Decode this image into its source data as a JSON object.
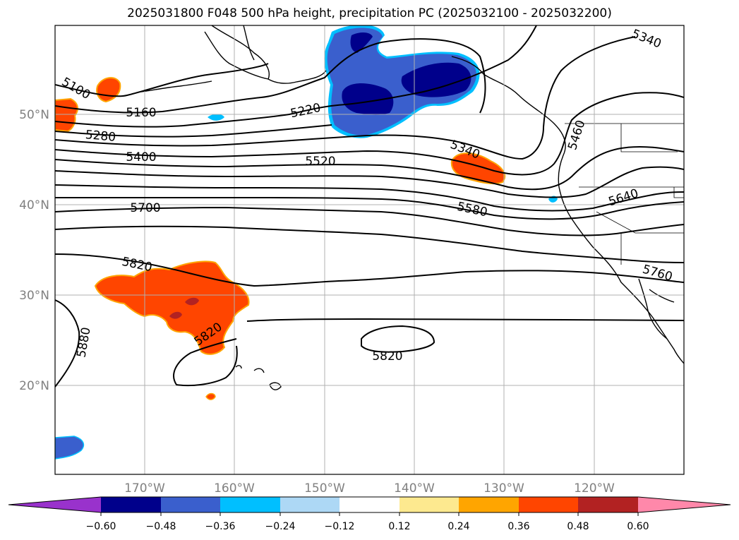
{
  "title": "2025031800 F048 500 hPa height, precipitation PC (2025032100 - 2025032200)",
  "latitude_labels": [
    "50°N",
    "40°N",
    "30°N",
    "20°N"
  ],
  "longitude_labels": [
    "170°W",
    "160°W",
    "150°W",
    "140°W",
    "130°W",
    "120°W"
  ],
  "contour_labels": [
    "5100",
    "5160",
    "5220",
    "5280",
    "5340",
    "5400",
    "5460",
    "5520",
    "5580",
    "5640",
    "5700",
    "5760",
    "5820",
    "5820",
    "5820",
    "5880",
    "5340"
  ],
  "colorbar": {
    "ticks": [
      "−0.60",
      "−0.48",
      "−0.36",
      "−0.24",
      "−0.12",
      "0.12",
      "0.24",
      "0.36",
      "0.48",
      "0.60"
    ],
    "colors": [
      "#9932cc",
      "#00008b",
      "#3a5fcd",
      "#00bfff",
      "#add8f5",
      "#ffffff",
      "#fde98f",
      "#ffa500",
      "#ff4500",
      "#b22222",
      "#ff88aa"
    ]
  },
  "colors": {
    "strong_negative": "#00008b",
    "negative": "#3a5fcd",
    "weak_negative": "#00bfff",
    "positive": "#ff4500",
    "strong_positive": "#b22222",
    "positive_edge": "#ffa500"
  }
}
